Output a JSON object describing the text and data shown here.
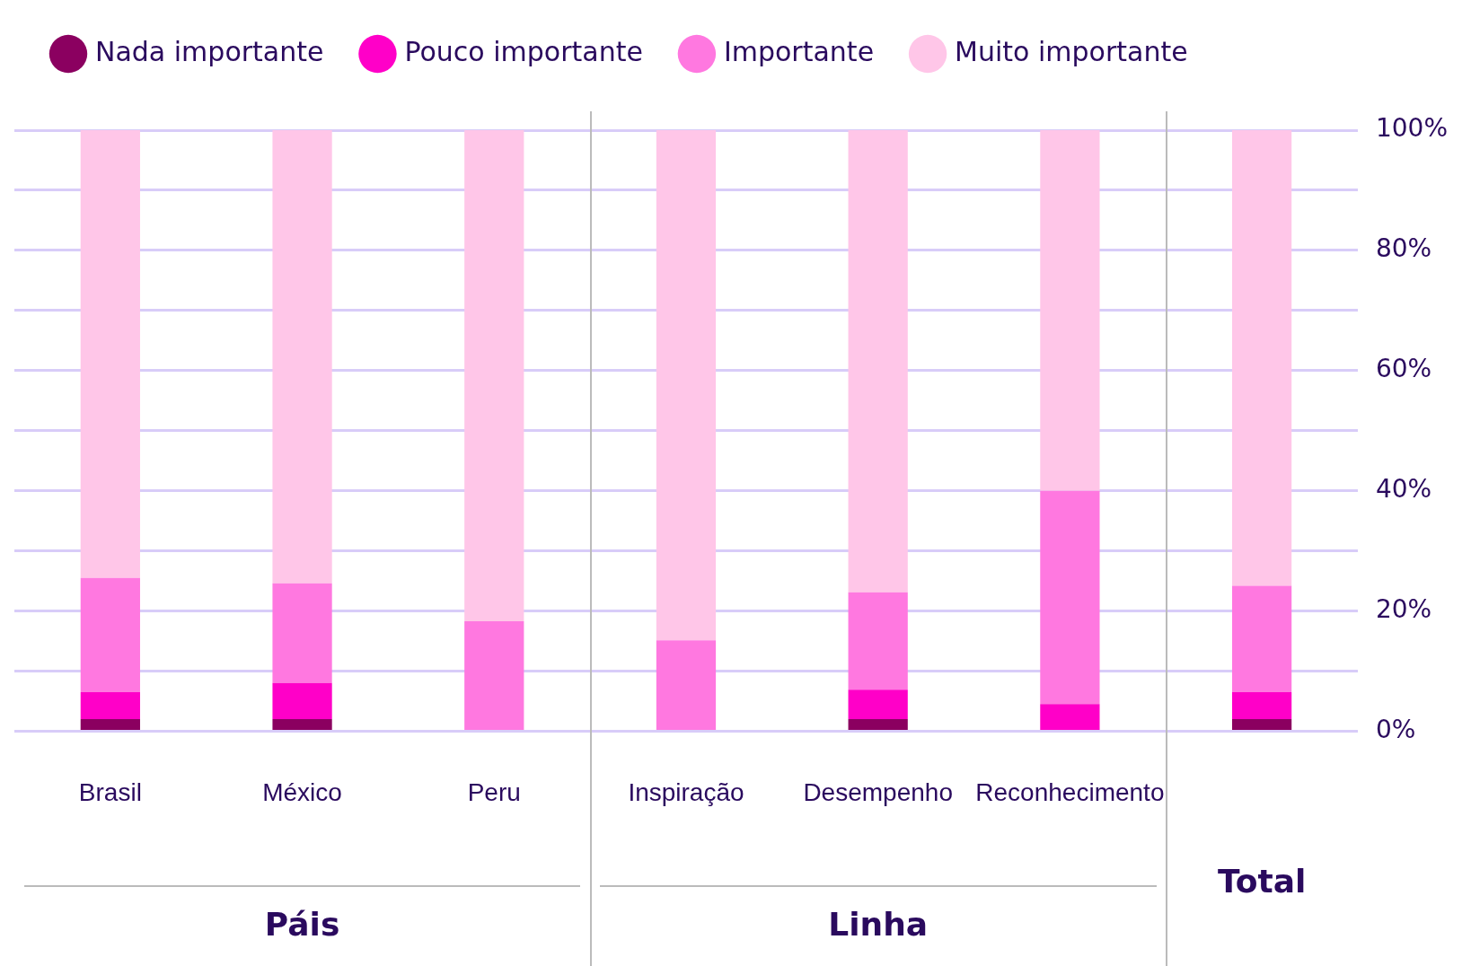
{
  "chart_data": {
    "type": "bar",
    "stacked": true,
    "categories": [
      "Brasil",
      "México",
      "Peru",
      "Inspiração",
      "Desempenho",
      "Reconhecimento",
      null
    ],
    "series": [
      {
        "name": "Nada importante",
        "color": "#8b0060",
        "values": [
          2,
          2,
          0,
          0,
          2,
          0,
          2
        ]
      },
      {
        "name": "Pouco importante",
        "color": "#ff00c8",
        "values": [
          4.5,
          6,
          0,
          0,
          4.9,
          4.5,
          4.5
        ]
      },
      {
        "name": "Importante",
        "color": "#ff78e0",
        "values": [
          19,
          16.6,
          18.3,
          15.1,
          16.2,
          35.5,
          17.7
        ]
      },
      {
        "name": "Muito importante",
        "color": "#ffc6e8",
        "values": [
          74.5,
          75.4,
          81.7,
          84.9,
          76.9,
          60,
          75.8
        ]
      }
    ],
    "ylim": [
      0,
      100
    ],
    "yticks": [
      {
        "value": 0,
        "label": "0%"
      },
      {
        "value": 10,
        "label": null
      },
      {
        "value": 20,
        "label": "20%"
      },
      {
        "value": 30,
        "label": null
      },
      {
        "value": 40,
        "label": "40%"
      },
      {
        "value": 50,
        "label": null
      },
      {
        "value": 60,
        "label": "60%"
      },
      {
        "value": 70,
        "label": null
      },
      {
        "value": 80,
        "label": "80%"
      },
      {
        "value": 90,
        "label": null
      },
      {
        "value": 100,
        "label": "100%"
      }
    ],
    "grid": "y",
    "legend": "top left",
    "annotations": [
      "Páis",
      "Linha",
      "Total"
    ]
  }
}
